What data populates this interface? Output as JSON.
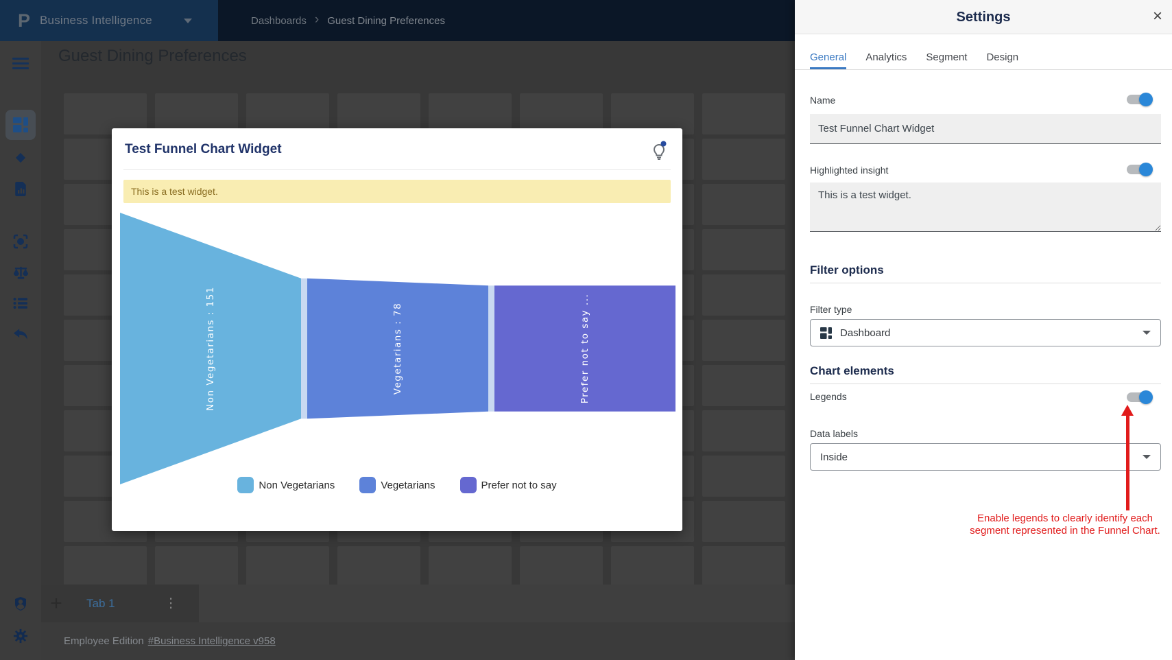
{
  "topbar": {
    "brand": "Business Intelligence",
    "breadcrumb": [
      "Dashboards",
      "Guest Dining Preferences"
    ]
  },
  "page": {
    "title": "Guest Dining Preferences"
  },
  "widget": {
    "title": "Test Funnel Chart Widget",
    "insight_banner": "This is a test widget."
  },
  "chart_data": {
    "type": "funnel",
    "title": "Test Funnel Chart Widget",
    "orientation": "horizontal",
    "data_labels": "inside, rotated 90deg, white",
    "segments": [
      {
        "name": "Non Vegetarians",
        "value": 151,
        "label": "Non Vegetarians : 151",
        "color": "#68b3de"
      },
      {
        "name": "Vegetarians",
        "value": 78,
        "label": "Vegetarians : 78",
        "color": "#5d82d9"
      },
      {
        "name": "Prefer not to say",
        "value": null,
        "label": "Prefer not to say ...",
        "color": "#6568d0"
      }
    ],
    "legend": {
      "position": "bottom",
      "entries": [
        "Non Vegetarians",
        "Vegetarians",
        "Prefer not to say"
      ]
    }
  },
  "tabs_bar": {
    "add_label": "+",
    "tab": "Tab 1",
    "menu_glyph": "⋮"
  },
  "status": {
    "edition": "Employee Edition",
    "version_link": "#Business Intelligence v958"
  },
  "settings": {
    "title": "Settings",
    "close_glyph": "×",
    "tabs": [
      "General",
      "Analytics",
      "Segment",
      "Design"
    ],
    "active_tab": "General",
    "name_label": "Name",
    "name_value": "Test Funnel Chart Widget",
    "insight_label": "Highlighted insight",
    "insight_value": "This is a test widget.",
    "filter_section": "Filter options",
    "filter_type_label": "Filter type",
    "filter_type_value": "Dashboard",
    "chart_section": "Chart elements",
    "legends_label": "Legends",
    "data_labels_label": "Data labels",
    "data_labels_value": "Inside",
    "toggles": {
      "name": true,
      "insight": true,
      "legends": true
    }
  },
  "annotation": {
    "text": "Enable legends to clearly identify each segment represented in the Funnel Chart.",
    "color": "#e11b1b"
  }
}
